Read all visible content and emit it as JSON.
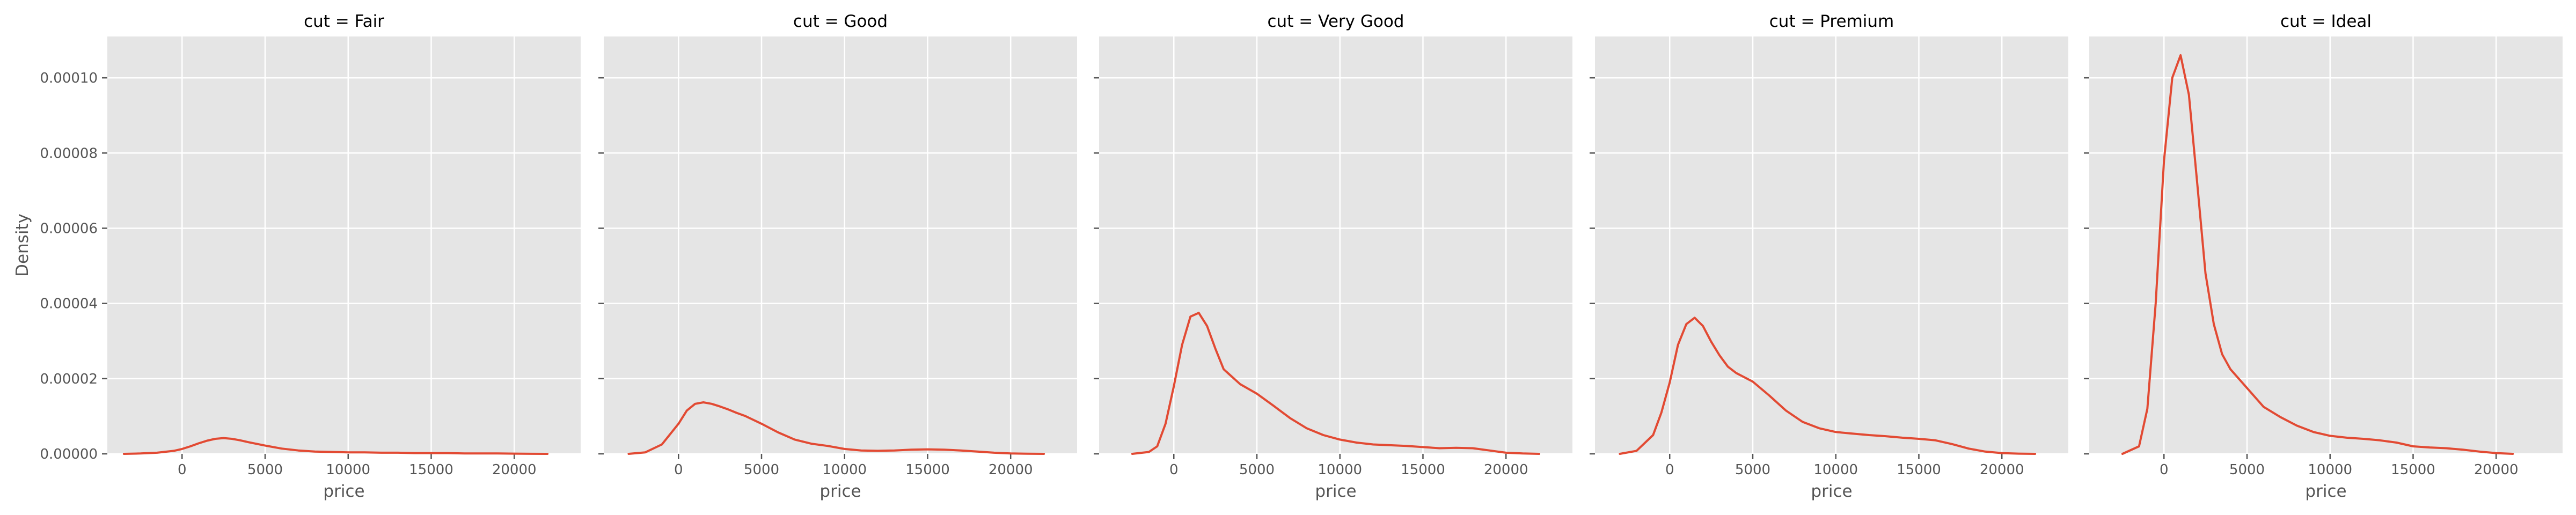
{
  "chart_data": {
    "type": "line",
    "ylabel": "Density",
    "xlabel": "price",
    "line_color": "#E24A33",
    "background_color": "#E5E5E5",
    "grid": true,
    "xlim": [
      -4500,
      24000
    ],
    "ylim": [
      0,
      0.000111
    ],
    "x_ticks": [
      0,
      5000,
      10000,
      15000,
      20000
    ],
    "y_ticks": [
      0,
      2e-05,
      4e-05,
      6e-05,
      8e-05,
      0.0001
    ],
    "x_tick_labels": [
      "0",
      "5000",
      "10000",
      "15000",
      "20000"
    ],
    "y_tick_labels": [
      "0.00000",
      "0.00002",
      "0.00004",
      "0.00006",
      "0.00008",
      "0.00010"
    ],
    "panels": [
      {
        "title": "cut = Fair",
        "x": [
          -3500,
          -2500,
          -1500,
          -500,
          0,
          500,
          1000,
          1500,
          2000,
          2500,
          3000,
          3500,
          4000,
          5000,
          6000,
          7000,
          8000,
          9000,
          10000,
          11000,
          12000,
          13000,
          14000,
          15000,
          16000,
          17000,
          18000,
          19000,
          20000,
          21000,
          22000
        ],
        "y": [
          0,
          1e-07,
          3e-07,
          8e-07,
          1.3e-06,
          2e-06,
          2.8e-06,
          3.5e-06,
          4e-06,
          4.2e-06,
          4e-06,
          3.6e-06,
          3.1e-06,
          2.2e-06,
          1.4e-06,
          9e-07,
          6e-07,
          5e-07,
          4e-07,
          4e-07,
          3e-07,
          3e-07,
          2e-07,
          2e-07,
          2e-07,
          1e-07,
          1e-07,
          1e-07,
          5e-08,
          2e-08,
          0
        ]
      },
      {
        "title": "cut = Good",
        "x": [
          -3000,
          -2000,
          -1000,
          0,
          500,
          1000,
          1500,
          2000,
          2500,
          3000,
          3500,
          4000,
          5000,
          6000,
          7000,
          8000,
          9000,
          10000,
          11000,
          12000,
          13000,
          14000,
          15000,
          16000,
          17000,
          18000,
          19000,
          20000,
          21000,
          22000
        ],
        "y": [
          0,
          4e-07,
          2.5e-06,
          8e-06,
          1.15e-05,
          1.33e-05,
          1.37e-05,
          1.33e-05,
          1.26e-05,
          1.18e-05,
          1.09e-05,
          1.01e-05,
          8e-06,
          5.7e-06,
          3.8e-06,
          2.7e-06,
          2.1e-06,
          1.3e-06,
          9e-07,
          8e-07,
          9e-07,
          1.1e-06,
          1.2e-06,
          1.1e-06,
          9e-07,
          6e-07,
          3e-07,
          1e-07,
          3e-08,
          0
        ]
      },
      {
        "title": "cut = Very Good",
        "x": [
          -2500,
          -1500,
          -1000,
          -500,
          0,
          500,
          1000,
          1500,
          2000,
          2500,
          3000,
          4000,
          5000,
          6000,
          7000,
          8000,
          9000,
          10000,
          11000,
          12000,
          13000,
          14000,
          15000,
          16000,
          17000,
          18000,
          19000,
          20000,
          21000,
          22000
        ],
        "y": [
          0,
          5e-07,
          2e-06,
          8e-06,
          1.8e-05,
          2.9e-05,
          3.65e-05,
          3.75e-05,
          3.4e-05,
          2.8e-05,
          2.25e-05,
          1.85e-05,
          1.6e-05,
          1.28e-05,
          9.5e-06,
          6.8e-06,
          5e-06,
          3.8e-06,
          3e-06,
          2.5e-06,
          2.3e-06,
          2.1e-06,
          1.8e-06,
          1.5e-06,
          1.6e-06,
          1.5e-06,
          9e-07,
          3e-07,
          1e-07,
          0
        ]
      },
      {
        "title": "cut = Premium",
        "x": [
          -3000,
          -2000,
          -1000,
          -500,
          0,
          500,
          1000,
          1500,
          2000,
          2500,
          3000,
          3500,
          4000,
          5000,
          6000,
          7000,
          8000,
          9000,
          10000,
          11000,
          12000,
          13000,
          14000,
          15000,
          16000,
          17000,
          18000,
          19000,
          20000,
          21000,
          22000
        ],
        "y": [
          0,
          8e-07,
          5e-06,
          1.1e-05,
          1.9e-05,
          2.9e-05,
          3.45e-05,
          3.62e-05,
          3.4e-05,
          2.98e-05,
          2.62e-05,
          2.32e-05,
          2.15e-05,
          1.92e-05,
          1.55e-05,
          1.15e-05,
          8.5e-06,
          6.8e-06,
          5.8e-06,
          5.4e-06,
          5e-06,
          4.7e-06,
          4.3e-06,
          4e-06,
          3.6e-06,
          2.6e-06,
          1.4e-06,
          6e-07,
          2e-07,
          5e-08,
          0
        ]
      },
      {
        "title": "cut = Ideal",
        "x": [
          -2500,
          -1500,
          -1000,
          -500,
          0,
          500,
          1000,
          1500,
          2000,
          2500,
          3000,
          3500,
          4000,
          5000,
          6000,
          7000,
          8000,
          9000,
          10000,
          11000,
          12000,
          13000,
          14000,
          15000,
          16000,
          17000,
          18000,
          19000,
          20000,
          21000
        ],
        "y": [
          0,
          2e-06,
          1.2e-05,
          4e-05,
          7.8e-05,
          0.0001,
          0.000106,
          9.55e-05,
          7.2e-05,
          4.8e-05,
          3.45e-05,
          2.65e-05,
          2.25e-05,
          1.75e-05,
          1.25e-05,
          9.8e-06,
          7.5e-06,
          5.8e-06,
          4.8e-06,
          4.3e-06,
          4e-06,
          3.6e-06,
          3e-06,
          2e-06,
          1.7e-06,
          1.5e-06,
          1.1e-06,
          6e-07,
          2e-07,
          0
        ]
      }
    ]
  }
}
